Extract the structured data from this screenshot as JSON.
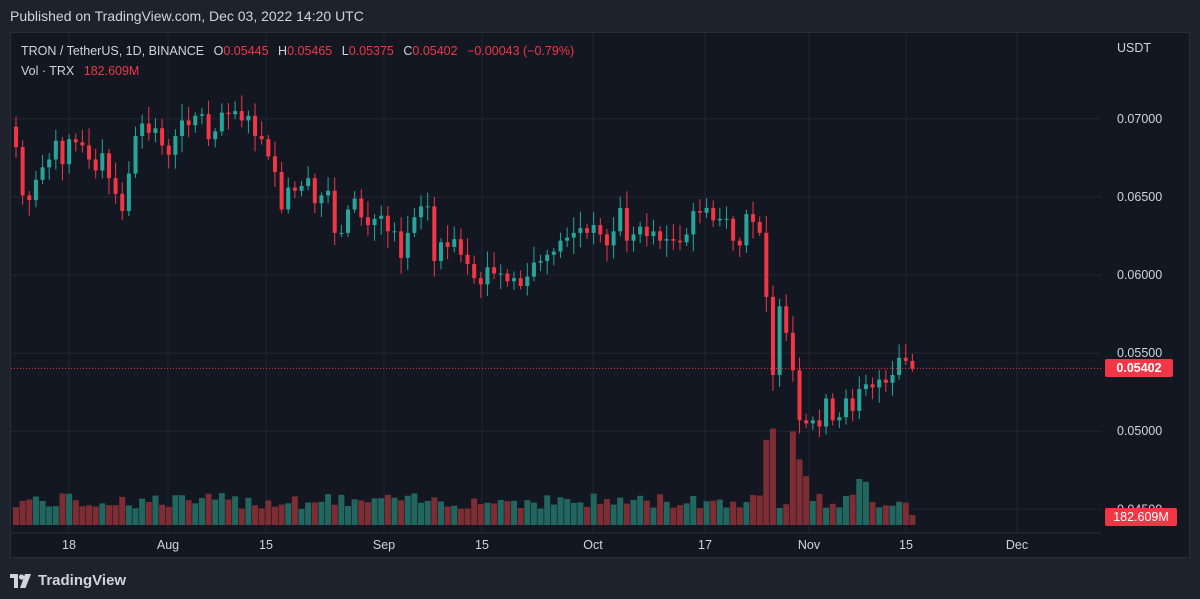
{
  "header": {
    "published": "Published on TradingView.com, Dec 03, 2022 14:20 UTC"
  },
  "legend": {
    "symbol": "TRON / TetherUS, 1D, BINANCE",
    "o_label": "O",
    "o": "0.05445",
    "h_label": "H",
    "h": "0.05465",
    "l_label": "L",
    "l": "0.05375",
    "c_label": "C",
    "c": "0.05402",
    "change": "−0.00043 (−0.79%)",
    "vol_label": "Vol · TRX",
    "vol": "182.609M"
  },
  "axis": {
    "currency": "USDT"
  },
  "footer": {
    "brand": "TradingView"
  },
  "colors": {
    "up": "#26a69a",
    "down": "#f23645",
    "vol_up": "#22675f",
    "vol_down": "#7e2d34",
    "grid": "#222631"
  },
  "chart_data": {
    "type": "candlestick",
    "title": "TRON / TetherUS, 1D, BINANCE",
    "price_axis_ticks": [
      "0.07000",
      "0.06500",
      "0.06000",
      "0.05500",
      "0.05000",
      "0.04500"
    ],
    "time_axis_ticks": [
      "18",
      "Aug",
      "15",
      "Sep",
      "15",
      "Oct",
      "17",
      "Nov",
      "15",
      "Dec"
    ],
    "last_price": "0.05402",
    "last_volume": "182.609M",
    "ylim": [
      0.0422,
      0.0755
    ],
    "grid": true,
    "approx_close_series": [
      0.0682,
      0.0651,
      0.0648,
      0.0661,
      0.0669,
      0.0674,
      0.0686,
      0.0671,
      0.0687,
      0.0685,
      0.0683,
      0.0674,
      0.0667,
      0.0678,
      0.0662,
      0.0652,
      0.0641,
      0.0665,
      0.0689,
      0.0697,
      0.0691,
      0.0694,
      0.0683,
      0.0677,
      0.0689,
      0.0699,
      0.0696,
      0.0702,
      0.0703,
      0.0687,
      0.0692,
      0.0704,
      0.0703,
      0.0705,
      0.0699,
      0.0702,
      0.0689,
      0.0687,
      0.0676,
      0.0666,
      0.0642,
      0.0656,
      0.0654,
      0.0657,
      0.0662,
      0.0646,
      0.0651,
      0.0654,
      0.0627,
      0.0627,
      0.0642,
      0.0649,
      0.0637,
      0.0632,
      0.0636,
      0.0638,
      0.0628,
      0.0628,
      0.0611,
      0.0627,
      0.0637,
      0.0644,
      0.0644,
      0.0609,
      0.0621,
      0.0618,
      0.0623,
      0.0613,
      0.0607,
      0.0598,
      0.0594,
      0.0605,
      0.0601,
      0.0601,
      0.0596,
      0.0598,
      0.0593,
      0.0599,
      0.0608,
      0.0609,
      0.0613,
      0.0615,
      0.0622,
      0.0624,
      0.0627,
      0.063,
      0.0627,
      0.0632,
      0.0626,
      0.0619,
      0.0628,
      0.0643,
      0.0622,
      0.0626,
      0.0631,
      0.0625,
      0.0628,
      0.0622,
      0.0623,
      0.0622,
      0.0621,
      0.0626,
      0.0641,
      0.064,
      0.0643,
      0.0635,
      0.0636,
      0.0636,
      0.0622,
      0.0619,
      0.0639,
      0.0634,
      0.0627,
      0.0586,
      0.0536,
      0.058,
      0.0563,
      0.0539,
      0.0507,
      0.0505,
      0.0507,
      0.0503,
      0.0521,
      0.0507,
      0.0509,
      0.0521,
      0.0513,
      0.0527,
      0.053,
      0.0528,
      0.0533,
      0.0531,
      0.0536,
      0.0547,
      0.0545,
      0.054
    ]
  }
}
